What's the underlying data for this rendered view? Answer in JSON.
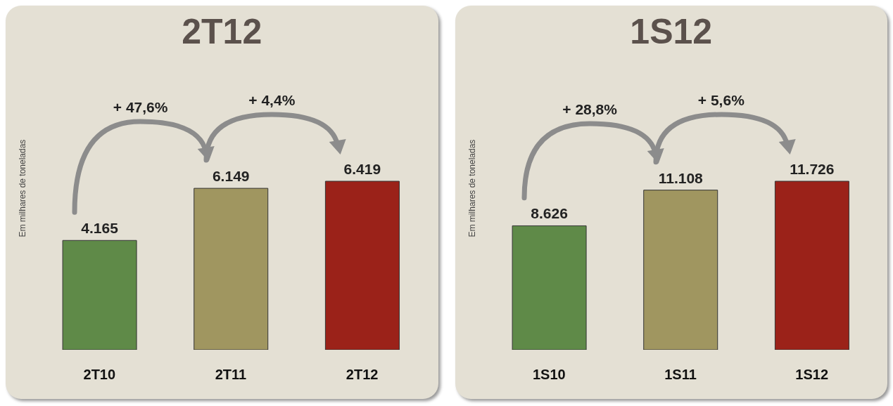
{
  "chart_data": [
    {
      "type": "bar",
      "title": "2T12",
      "ylabel": "Em milhares de toneladas",
      "categories": [
        "2T10",
        "2T11",
        "2T12"
      ],
      "values": [
        4165,
        6149,
        6419
      ],
      "value_labels": [
        "4.165",
        "6.149",
        "6.419"
      ],
      "colors": [
        "#5f8a48",
        "#a09660",
        "#9b2219"
      ],
      "annotations": [
        "+ 47,6%",
        "+ 4,4%"
      ],
      "grid": false,
      "legend": false
    },
    {
      "type": "bar",
      "title": "1S12",
      "ylabel": "Em milhares de toneladas",
      "categories": [
        "1S10",
        "1S11",
        "1S12"
      ],
      "values": [
        8626,
        11108,
        11726
      ],
      "value_labels": [
        "8.626",
        "11.108",
        "11.726"
      ],
      "colors": [
        "#5f8a48",
        "#a09660",
        "#9b2219"
      ],
      "annotations": [
        "+ 28,8%",
        "+ 5,6%"
      ],
      "grid": false,
      "legend": false
    }
  ]
}
